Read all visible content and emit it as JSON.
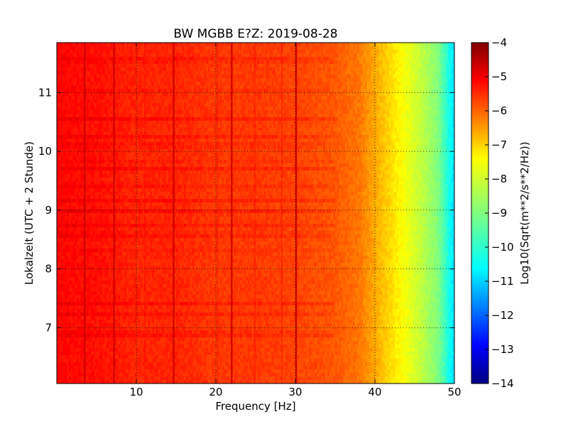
{
  "chart_data": {
    "type": "heatmap",
    "title": "BW MGBB E?Z: 2019-08-28",
    "xlabel": "Frequency [Hz]",
    "ylabel": "Lokalzeit (UTC + 2 Stunde)",
    "xlim": [
      0,
      50
    ],
    "ylim": [
      11.85,
      6.05
    ],
    "y_inverted": true,
    "x_ticks": [
      10,
      20,
      30,
      40,
      50
    ],
    "y_ticks": [
      7,
      8,
      9,
      10,
      11
    ],
    "grid": true,
    "colormap": "jet",
    "colorbar": {
      "label": "Log10(Sqrt(m**2/s**2/Hz))",
      "range": [
        -14,
        -4
      ],
      "ticks": [
        -4,
        -5,
        -6,
        -7,
        -8,
        -9,
        -10,
        -11,
        -12,
        -13,
        -14
      ]
    },
    "baseline_profile": [
      {
        "f": 0,
        "v": -5.3
      },
      {
        "f": 5,
        "v": -5.4
      },
      {
        "f": 10,
        "v": -5.6
      },
      {
        "f": 15,
        "v": -5.6
      },
      {
        "f": 20,
        "v": -5.8
      },
      {
        "f": 25,
        "v": -5.8
      },
      {
        "f": 30,
        "v": -5.9
      },
      {
        "f": 35,
        "v": -6.1
      },
      {
        "f": 38,
        "v": -6.4
      },
      {
        "f": 40,
        "v": -6.9
      },
      {
        "f": 42,
        "v": -7.4
      },
      {
        "f": 44,
        "v": -7.9
      },
      {
        "f": 46,
        "v": -8.4
      },
      {
        "f": 48,
        "v": -9.0
      },
      {
        "f": 49.5,
        "v": -10.2
      },
      {
        "f": 50,
        "v": -10.6
      }
    ],
    "spectral_lines_hz": [
      3.5,
      7.2,
      14.7,
      22.0,
      30.1
    ],
    "faint_lines_hz": [
      1.1,
      5.5,
      11.1,
      20.2,
      24.9,
      28.3
    ]
  }
}
